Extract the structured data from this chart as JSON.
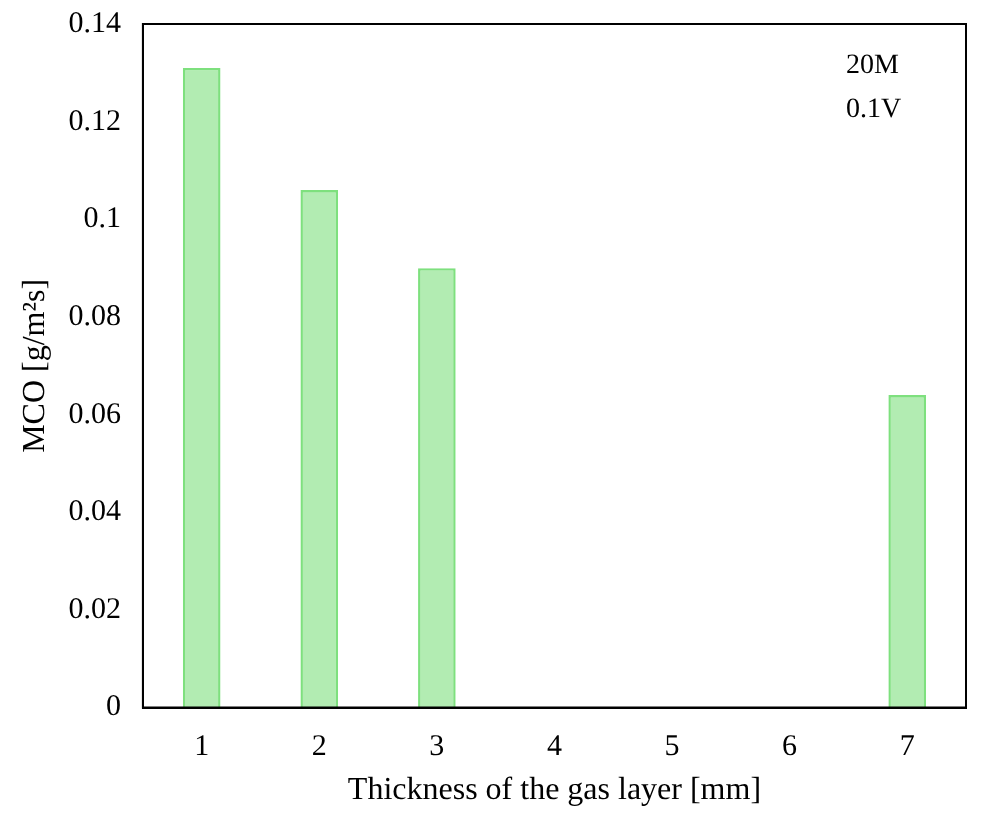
{
  "chart_data": {
    "type": "bar",
    "xlabel": "Thickness of the gas layer [mm]",
    "ylabel": "MCO [g/m²s]",
    "categories": [
      "1",
      "2",
      "3",
      "4",
      "5",
      "6",
      "7"
    ],
    "values": [
      0.131,
      0.106,
      0.09,
      null,
      null,
      null,
      0.064
    ],
    "color": "#7ee07e",
    "ylim": [
      0,
      0.14
    ],
    "yticks": [
      0,
      0.02,
      0.04,
      0.06,
      0.08,
      0.1,
      0.12,
      0.14
    ],
    "annotations": [
      "20M",
      "0.1V"
    ],
    "grid": false,
    "legend": false
  }
}
